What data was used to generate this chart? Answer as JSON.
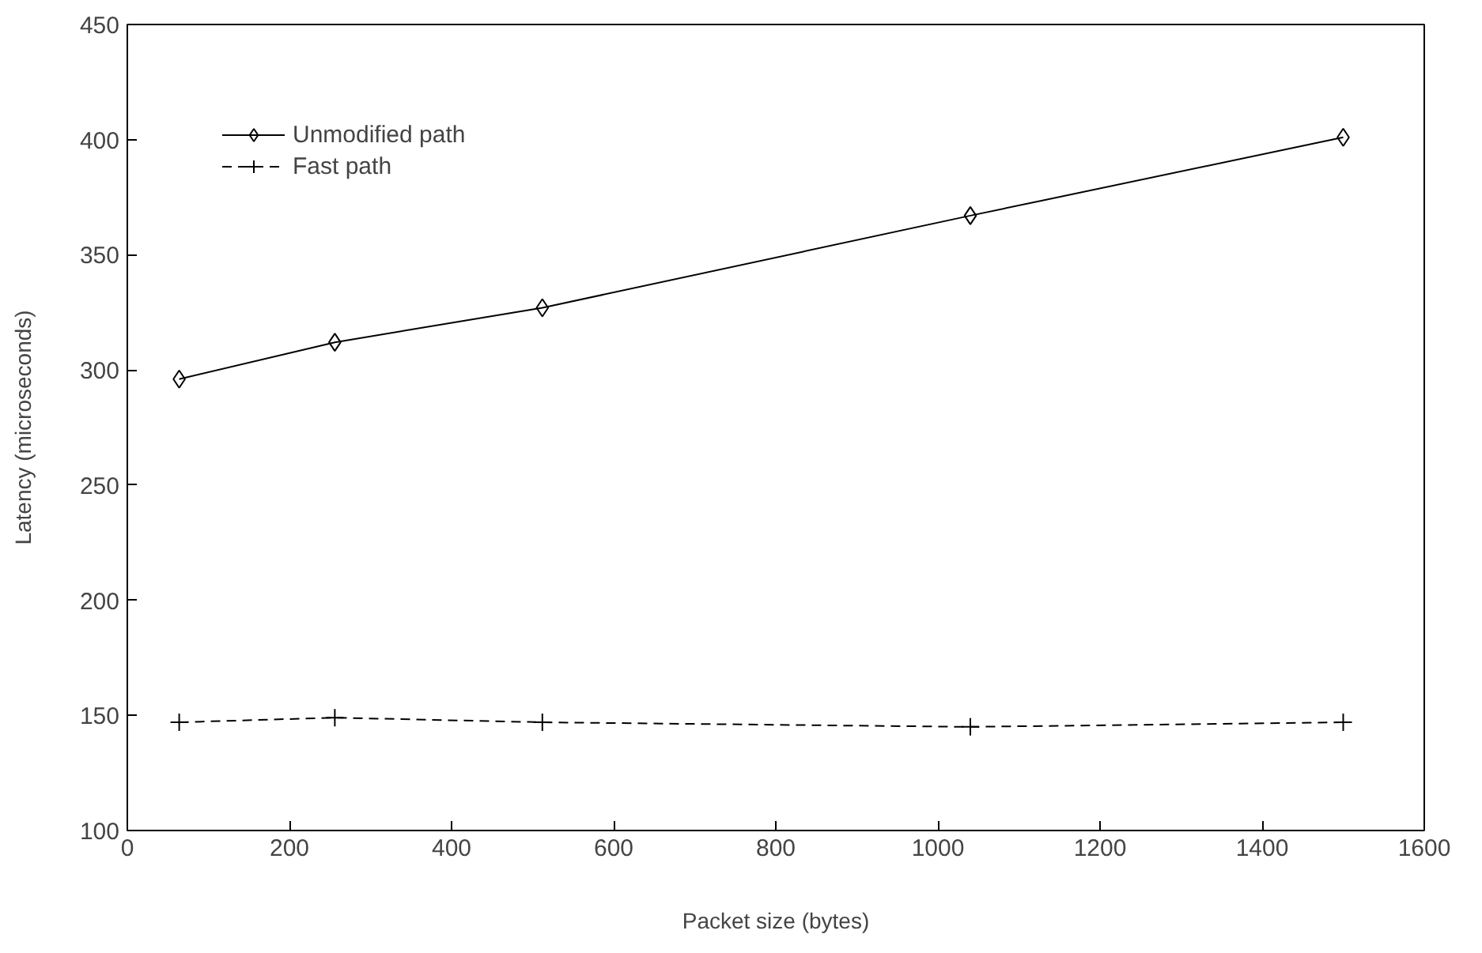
{
  "chart_data": {
    "type": "line",
    "xlabel": "Packet size (bytes)",
    "ylabel": "Latency (microseconds)",
    "x": [
      64,
      256,
      512,
      1040,
      1500
    ],
    "series": [
      {
        "name": "Unmodified path",
        "color": "#000000",
        "values": [
          296,
          312,
          327,
          367,
          401
        ],
        "marker": "diamond",
        "line_style": "solid"
      },
      {
        "name": "Fast path",
        "color": "#000000",
        "values": [
          147,
          149,
          147,
          145,
          147
        ],
        "marker": "cross",
        "line_style": "dashed"
      }
    ],
    "xlim": [
      0,
      1600
    ],
    "xticks": [
      0,
      200,
      400,
      600,
      800,
      1000,
      1200,
      1400,
      1600
    ],
    "ylim": [
      100,
      450
    ],
    "yticks": [
      100,
      150,
      200,
      250,
      300,
      350,
      400,
      450
    ],
    "grid": false,
    "legend": "top left"
  }
}
